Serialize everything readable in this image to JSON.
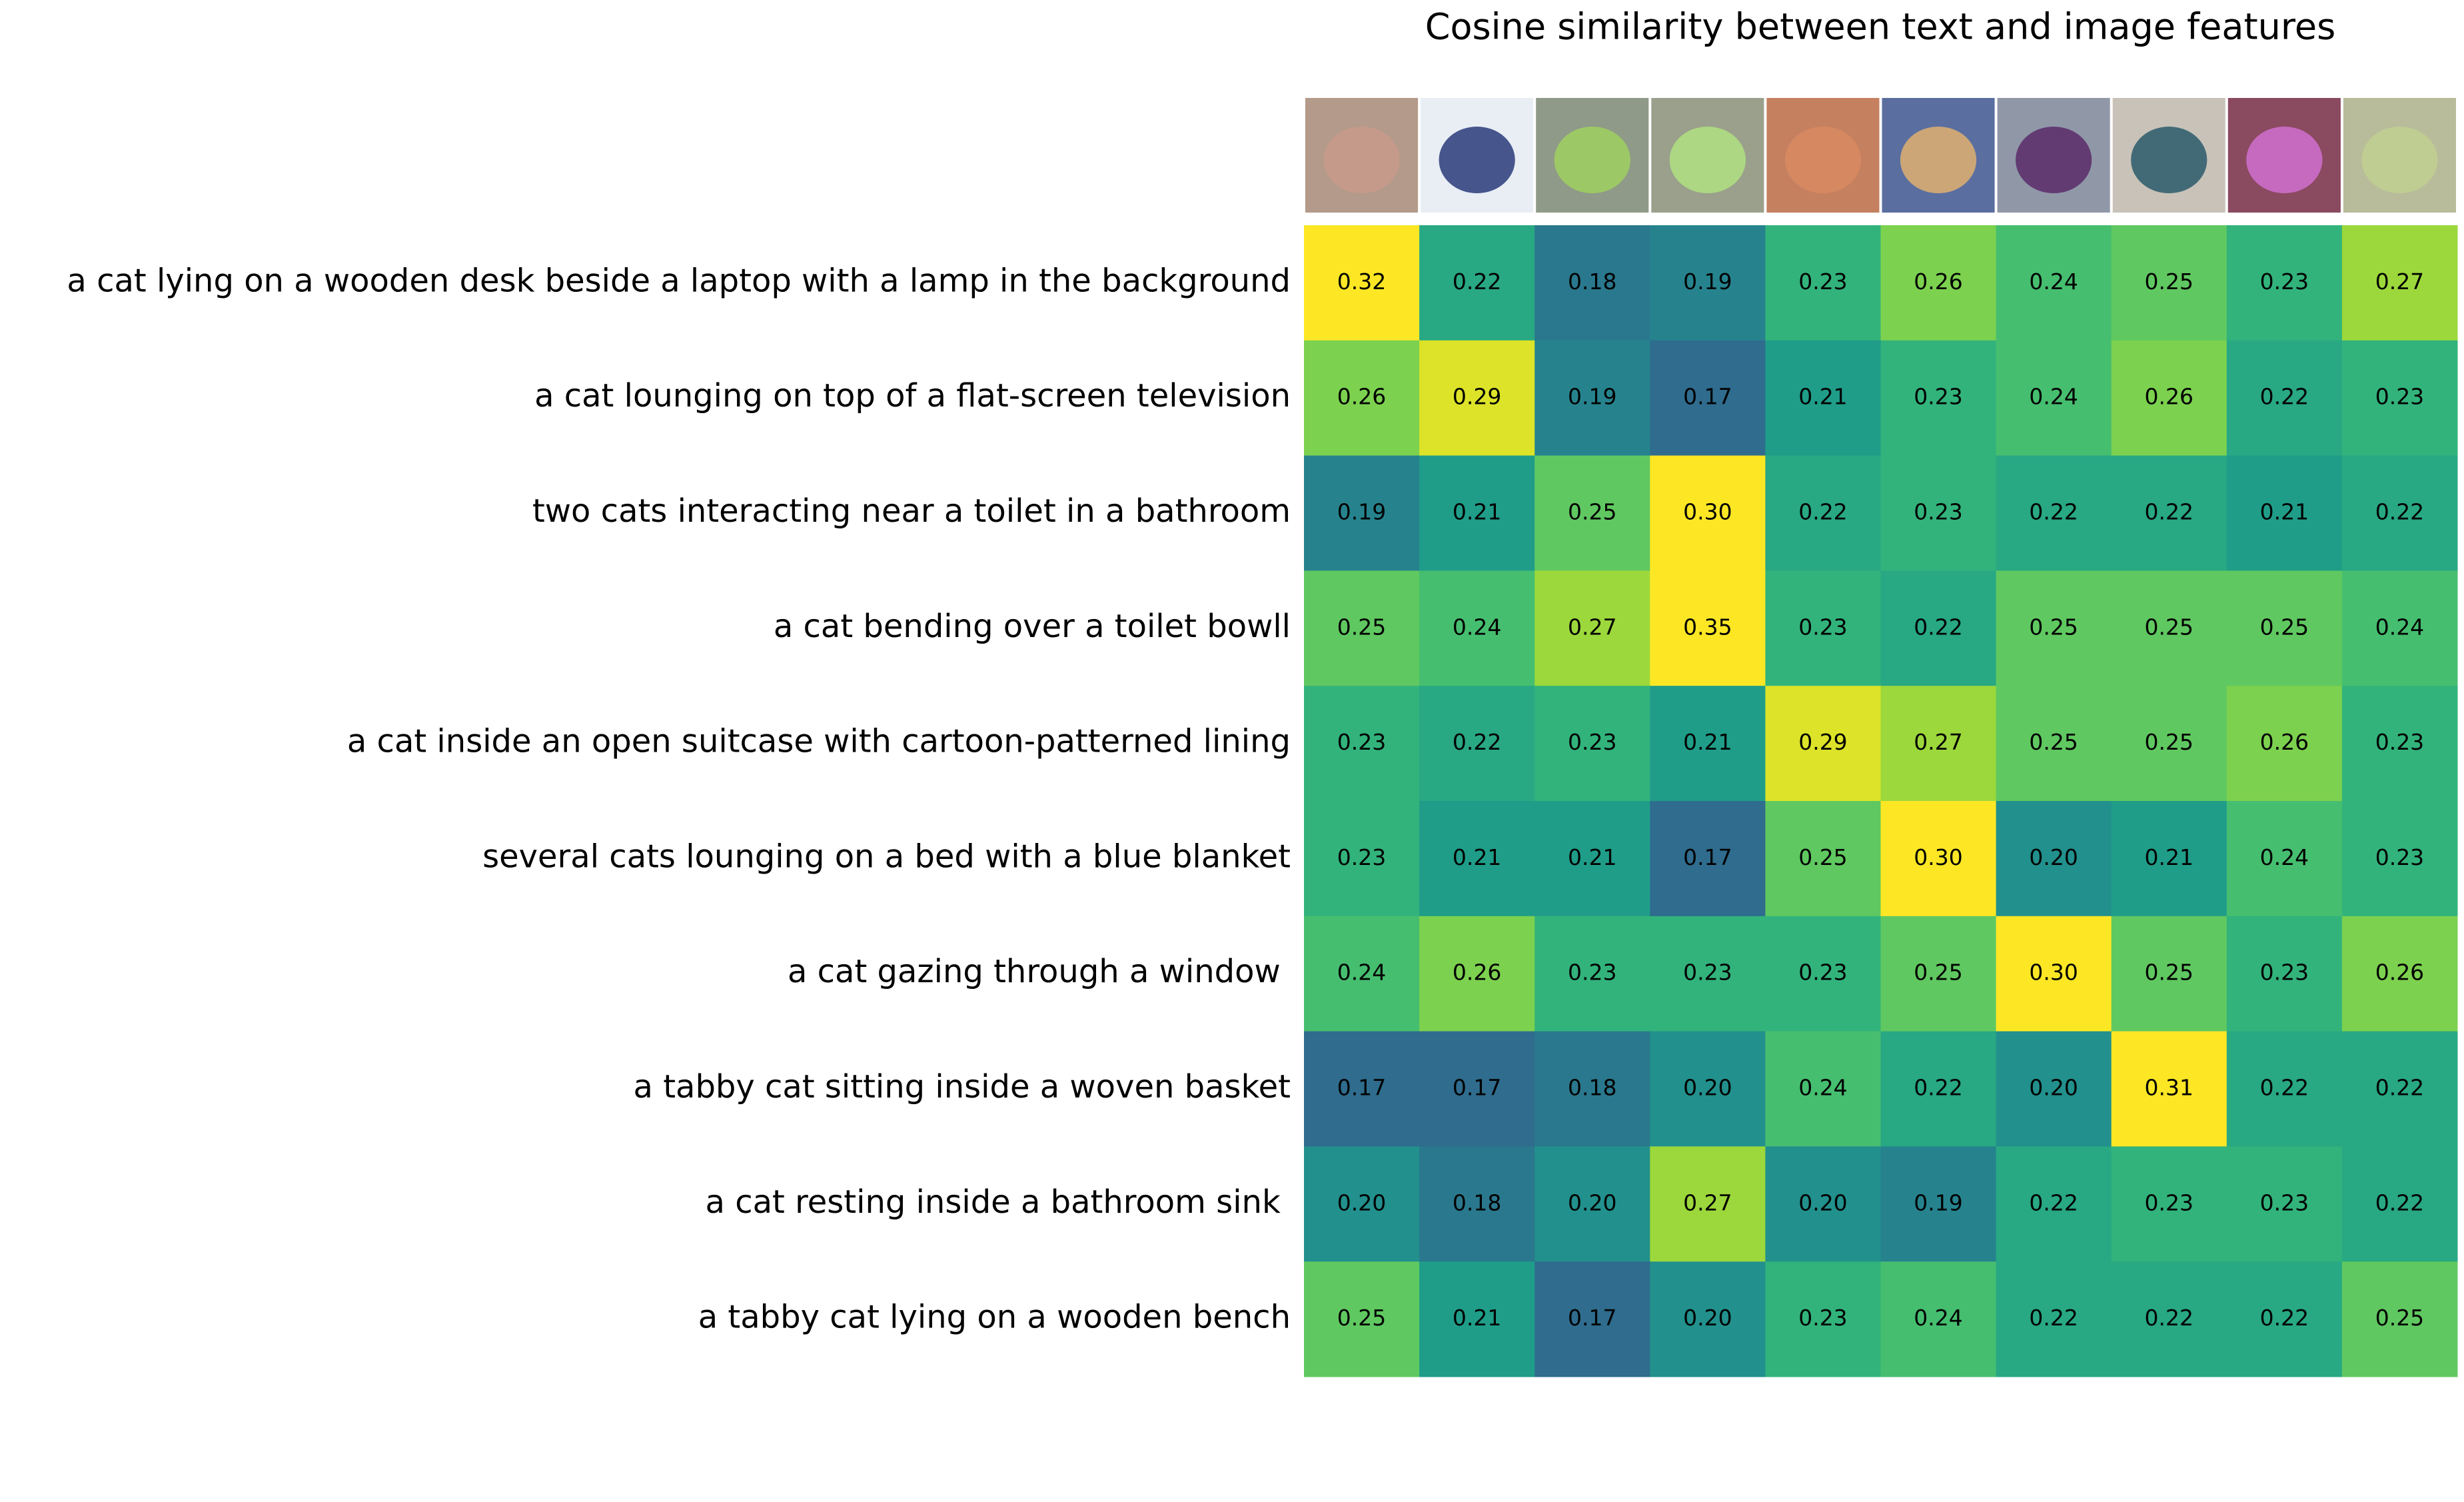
{
  "chart_data": {
    "type": "heatmap",
    "title": "Cosine similarity between text and image features",
    "rows": [
      "a cat lying on a wooden desk beside a laptop with a lamp in the background",
      "a cat lounging on top of a flat-screen television",
      "two cats interacting near a toilet in a bathroom",
      "a cat bending over a toilet bowll",
      "a cat inside an open suitcase with cartoon-patterned lining",
      "several cats lounging on a bed with a blue blanket",
      "a cat gazing through a window ",
      "a tabby cat sitting inside a woven basket",
      "a cat resting inside a bathroom sink ",
      "a tabby cat lying on a wooden bench"
    ],
    "values": [
      [
        0.32,
        0.22,
        0.18,
        0.19,
        0.23,
        0.26,
        0.24,
        0.25,
        0.23,
        0.27
      ],
      [
        0.26,
        0.29,
        0.19,
        0.17,
        0.21,
        0.23,
        0.24,
        0.26,
        0.22,
        0.23
      ],
      [
        0.19,
        0.21,
        0.25,
        0.3,
        0.22,
        0.23,
        0.22,
        0.22,
        0.21,
        0.22
      ],
      [
        0.25,
        0.24,
        0.27,
        0.35,
        0.23,
        0.22,
        0.25,
        0.25,
        0.25,
        0.24
      ],
      [
        0.23,
        0.22,
        0.23,
        0.21,
        0.29,
        0.27,
        0.25,
        0.25,
        0.26,
        0.23
      ],
      [
        0.23,
        0.21,
        0.21,
        0.17,
        0.25,
        0.3,
        0.2,
        0.21,
        0.24,
        0.23
      ],
      [
        0.24,
        0.26,
        0.23,
        0.23,
        0.23,
        0.25,
        0.3,
        0.25,
        0.23,
        0.26
      ],
      [
        0.17,
        0.17,
        0.18,
        0.2,
        0.24,
        0.22,
        0.2,
        0.31,
        0.22,
        0.22
      ],
      [
        0.2,
        0.18,
        0.2,
        0.27,
        0.2,
        0.19,
        0.22,
        0.23,
        0.23,
        0.22
      ],
      [
        0.25,
        0.21,
        0.17,
        0.2,
        0.23,
        0.24,
        0.22,
        0.22,
        0.22,
        0.25
      ]
    ],
    "value_labels": [
      [
        "0.32",
        "0.22",
        "0.18",
        "0.19",
        "0.23",
        "0.26",
        "0.24",
        "0.25",
        "0.23",
        "0.27"
      ],
      [
        "0.26",
        "0.29",
        "0.19",
        "0.17",
        "0.21",
        "0.23",
        "0.24",
        "0.26",
        "0.22",
        "0.23"
      ],
      [
        "0.19",
        "0.21",
        "0.25",
        "0.30",
        "0.22",
        "0.23",
        "0.22",
        "0.22",
        "0.21",
        "0.22"
      ],
      [
        "0.25",
        "0.24",
        "0.27",
        "0.35",
        "0.23",
        "0.22",
        "0.25",
        "0.25",
        "0.25",
        "0.24"
      ],
      [
        "0.23",
        "0.22",
        "0.23",
        "0.21",
        "0.29",
        "0.27",
        "0.25",
        "0.25",
        "0.26",
        "0.23"
      ],
      [
        "0.23",
        "0.21",
        "0.21",
        "0.17",
        "0.25",
        "0.30",
        "0.20",
        "0.21",
        "0.24",
        "0.23"
      ],
      [
        "0.24",
        "0.26",
        "0.23",
        "0.23",
        "0.23",
        "0.25",
        "0.30",
        "0.25",
        "0.23",
        "0.26"
      ],
      [
        "0.17",
        "0.17",
        "0.18",
        "0.20",
        "0.24",
        "0.22",
        "0.20",
        "0.31",
        "0.22",
        "0.22"
      ],
      [
        "0.20",
        "0.18",
        "0.20",
        "0.27",
        "0.20",
        "0.19",
        "0.22",
        "0.23",
        "0.23",
        "0.22"
      ],
      [
        "0.25",
        "0.21",
        "0.17",
        "0.20",
        "0.23",
        "0.24",
        "0.22",
        "0.22",
        "0.22",
        "0.25"
      ]
    ],
    "colormap": "viridis",
    "clim": [
      0.1,
      0.3
    ]
  }
}
